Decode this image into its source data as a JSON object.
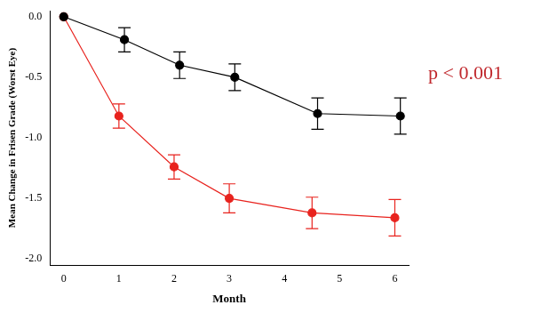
{
  "chart_data": {
    "type": "line",
    "x_label": "Month",
    "y_label": "Mean Change in Frisen Grade (Worst Eye)",
    "annotations": [
      "p < 0.001"
    ],
    "xlim": [
      -0.25,
      6.25
    ],
    "xticks": [
      0,
      1,
      2,
      3,
      4,
      5,
      6
    ],
    "ylim": [
      -2.05,
      0.05
    ],
    "yticks": [
      {
        "value": -2,
        "label": "-2.0"
      },
      {
        "value": -1.5,
        "label": "-1.5"
      },
      {
        "value": -1,
        "label": "-1.0"
      },
      {
        "value": -0.5,
        "label": "-0.5"
      },
      {
        "value": 0,
        "label": "0.0"
      }
    ],
    "grid": false,
    "series": [
      {
        "color": "#000000",
        "marker": "circle",
        "line_style": "solid",
        "x": [
          0,
          1.1,
          2.1,
          3.1,
          4.6,
          6.1
        ],
        "values": [
          0,
          -0.19,
          -0.4,
          -0.5,
          -0.8,
          -0.82
        ],
        "error": [
          null,
          0.1,
          0.11,
          0.11,
          0.13,
          0.15
        ]
      },
      {
        "color": "#e8231e",
        "marker": "circle",
        "line_style": "solid",
        "x": [
          0,
          1,
          2,
          3,
          4.5,
          6
        ],
        "values": [
          0,
          -0.82,
          -1.24,
          -1.5,
          -1.62,
          -1.66
        ],
        "error": [
          null,
          0.1,
          0.1,
          0.12,
          0.13,
          0.15
        ]
      }
    ]
  }
}
